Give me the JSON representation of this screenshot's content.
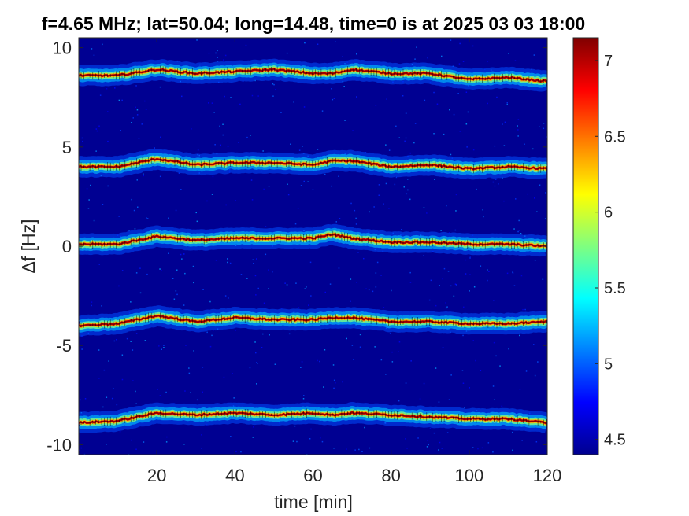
{
  "chart_data": {
    "type": "heatmap",
    "title": "f=4.65 MHz;  lat=50.04; long=14.48, time=0 is at 2025 03 03 18:00",
    "xlabel": "time [min]",
    "ylabel": "Δf [Hz]",
    "xlim": [
      0,
      120
    ],
    "ylim": [
      -10.5,
      10.5
    ],
    "x_ticks": [
      20,
      40,
      60,
      80,
      100,
      120
    ],
    "x_tick_labels": [
      "20",
      "40",
      "60",
      "80",
      "100",
      "120"
    ],
    "y_ticks": [
      10,
      5,
      0,
      -5,
      -10
    ],
    "y_tick_labels": [
      "10",
      "5",
      "0",
      "-5",
      "-10"
    ],
    "colorbar": {
      "range": [
        4.4,
        7.15
      ],
      "ticks": [
        4.5,
        5,
        5.5,
        6,
        6.5,
        7
      ],
      "tick_labels": [
        "4.5",
        "5",
        "5.5",
        "6",
        "6.5",
        "7"
      ],
      "colormap": "jet"
    },
    "background_value": 4.45,
    "grid": false,
    "legend": "none",
    "colors": {
      "background_low": "#00008f",
      "peak": "#800000",
      "trace_marker": "#000000"
    },
    "series": [
      {
        "x": [
          0,
          10,
          20,
          30,
          40,
          50,
          60,
          65,
          70,
          80,
          90,
          100,
          110,
          120
        ],
        "y": [
          8.6,
          8.6,
          8.9,
          8.7,
          8.8,
          8.9,
          8.7,
          8.7,
          8.9,
          8.7,
          8.7,
          8.4,
          8.5,
          8.3
        ]
      },
      {
        "x": [
          0,
          10,
          20,
          30,
          40,
          50,
          60,
          65,
          70,
          80,
          90,
          100,
          110,
          120
        ],
        "y": [
          4.0,
          4.0,
          4.4,
          4.1,
          4.2,
          4.2,
          4.1,
          4.3,
          4.3,
          4.0,
          4.1,
          3.9,
          4.0,
          3.9
        ]
      },
      {
        "x": [
          0,
          10,
          20,
          30,
          40,
          50,
          60,
          65,
          70,
          80,
          90,
          100,
          110,
          120
        ],
        "y": [
          0.1,
          0.1,
          0.5,
          0.3,
          0.4,
          0.4,
          0.4,
          0.6,
          0.4,
          0.2,
          0.2,
          0.1,
          0.1,
          0.0
        ]
      },
      {
        "x": [
          0,
          10,
          20,
          30,
          40,
          50,
          60,
          65,
          70,
          80,
          90,
          100,
          110,
          120
        ],
        "y": [
          -4.0,
          -3.9,
          -3.5,
          -3.8,
          -3.6,
          -3.7,
          -3.7,
          -3.6,
          -3.6,
          -3.8,
          -3.8,
          -3.9,
          -3.9,
          -3.8
        ]
      },
      {
        "x": [
          0,
          10,
          20,
          30,
          40,
          50,
          60,
          65,
          70,
          80,
          90,
          100,
          110,
          120
        ],
        "y": [
          -8.9,
          -8.8,
          -8.4,
          -8.5,
          -8.4,
          -8.5,
          -8.4,
          -8.5,
          -8.4,
          -8.5,
          -8.6,
          -8.7,
          -8.7,
          -8.9
        ]
      }
    ]
  }
}
